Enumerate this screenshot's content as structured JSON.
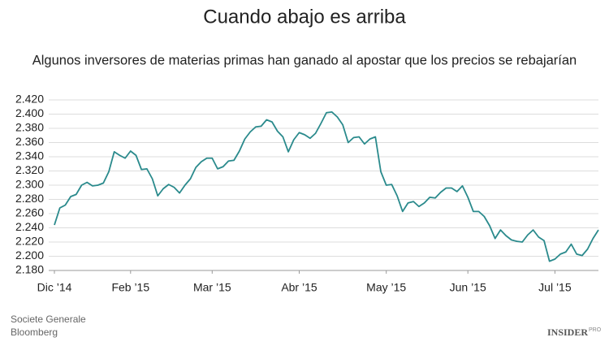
{
  "chart_data": {
    "type": "line",
    "title": "Cuando abajo es arriba",
    "subtitle": "Algunos inversores de materias primas han ganado al apostar que los precios se rebajarían",
    "categories": [
      "Dic ’14",
      null,
      null,
      null,
      null,
      null,
      null,
      null,
      null,
      null,
      null,
      null,
      null,
      null,
      "Feb ’15",
      null,
      null,
      null,
      null,
      null,
      null,
      null,
      null,
      null,
      null,
      null,
      null,
      null,
      null,
      "Mar ’15",
      null,
      null,
      null,
      null,
      null,
      null,
      null,
      null,
      null,
      null,
      null,
      null,
      null,
      null,
      null,
      "Abr ’15",
      null,
      null,
      null,
      null,
      null,
      null,
      null,
      null,
      null,
      null,
      null,
      null,
      null,
      null,
      null,
      "May ’15",
      null,
      null,
      null,
      null,
      null,
      null,
      null,
      null,
      null,
      null,
      null,
      null,
      null,
      null,
      "Jun ’15",
      null,
      null,
      null,
      null,
      null,
      null,
      null,
      null,
      null,
      null,
      null,
      null,
      null,
      null,
      null,
      "Jul ’15",
      null,
      null,
      null,
      null,
      null,
      null,
      null,
      null
    ],
    "values": [
      2.244,
      2.268,
      2.272,
      2.284,
      2.287,
      2.3,
      2.304,
      2.299,
      2.3,
      2.303,
      2.319,
      2.347,
      2.342,
      2.338,
      2.348,
      2.342,
      2.322,
      2.323,
      2.309,
      2.285,
      2.295,
      2.301,
      2.297,
      2.289,
      2.3,
      2.309,
      2.325,
      2.333,
      2.338,
      2.338,
      2.323,
      2.326,
      2.334,
      2.335,
      2.348,
      2.365,
      2.375,
      2.382,
      2.383,
      2.392,
      2.389,
      2.376,
      2.368,
      2.347,
      2.364,
      2.374,
      2.371,
      2.366,
      2.373,
      2.387,
      2.402,
      2.403,
      2.396,
      2.385,
      2.36,
      2.367,
      2.368,
      2.358,
      2.365,
      2.368,
      2.319,
      2.3,
      2.301,
      2.285,
      2.263,
      2.275,
      2.277,
      2.27,
      2.275,
      2.283,
      2.282,
      2.29,
      2.296,
      2.296,
      2.291,
      2.299,
      2.283,
      2.263,
      2.263,
      2.256,
      2.243,
      2.225,
      2.237,
      2.229,
      2.223,
      2.221,
      2.22,
      2.23,
      2.237,
      2.227,
      2.222,
      2.193,
      2.196,
      2.203,
      2.206,
      2.217,
      2.203,
      2.201,
      2.21,
      2.225,
      2.237
    ],
    "color": "#2a8a8c",
    "ylim": [
      2.18,
      2.42
    ],
    "yticks": [
      {
        "value": 2.18,
        "label": "2.180"
      },
      {
        "value": 2.2,
        "label": "2.200"
      },
      {
        "value": 2.22,
        "label": "2.220"
      },
      {
        "value": 2.24,
        "label": "2.240"
      },
      {
        "value": 2.26,
        "label": "2.260"
      },
      {
        "value": 2.28,
        "label": "2.280"
      },
      {
        "value": 2.3,
        "label": "2.300"
      },
      {
        "value": 2.32,
        "label": "2.320"
      },
      {
        "value": 2.34,
        "label": "2.340"
      },
      {
        "value": 2.36,
        "label": "2.360"
      },
      {
        "value": 2.38,
        "label": "2.380"
      },
      {
        "value": 2.4,
        "label": "2.400"
      },
      {
        "value": 2.42,
        "label": "2.420"
      }
    ],
    "grid": true,
    "sources": [
      "Societe Generale",
      "Bloomberg"
    ],
    "brand": "INSIDER",
    "brand_sup": "PRO"
  }
}
